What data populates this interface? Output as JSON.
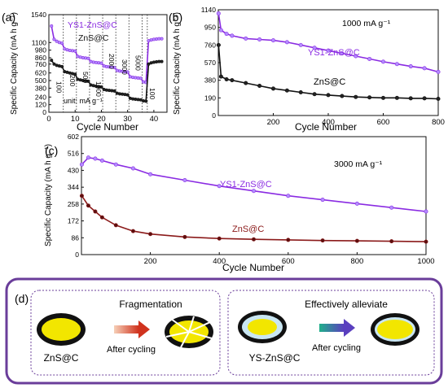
{
  "figure": {
    "panels": {
      "a": {
        "label": "(a)",
        "ylabel": "Specific Capacity (mA h g⁻¹)",
        "xlabel": "Cycle Number",
        "unit_note": "unit: mA g⁻¹",
        "series_labels": [
          "YS1-ZnS@C",
          "ZnS@C"
        ],
        "rate_labels": [
          "100",
          "200",
          "500",
          "1000",
          "2000",
          "3000",
          "5000",
          "100"
        ]
      },
      "b": {
        "label": "(b)",
        "ylabel": "Specific Capacity (mA h g⁻¹)",
        "xlabel": "Cycle Number",
        "note": "1000 mA g⁻¹",
        "series_labels": [
          "YS1-ZnS@C",
          "ZnS@C"
        ]
      },
      "c": {
        "label": "(c)",
        "ylabel": "Specific Capacity (mA h g⁻¹)",
        "xlabel": "Cycle Number",
        "note": "3000 mA g⁻¹",
        "series_labels": [
          "YS1-ZnS@C",
          "ZnS@C"
        ]
      },
      "d": {
        "label": "(d)",
        "left": {
          "title": "Fragmentation",
          "material": "ZnS@C",
          "arrow_label": "After cycling"
        },
        "right": {
          "title": "Effectively alleviate",
          "material": "YS-ZnS@C",
          "arrow_label": "After cycling"
        }
      }
    },
    "colors": {
      "ys": "#8a2be2",
      "zns": "#111111",
      "zns_c": "#8b1a1a",
      "frame": "#6a3d9a",
      "core": "#f2e600"
    }
  },
  "chart_data": [
    {
      "type": "line",
      "panel": "a",
      "xlabel": "Cycle Number",
      "ylabel": "Specific Capacity (mA h g⁻¹)",
      "xlim": [
        0,
        45
      ],
      "ylim": [
        0,
        1540
      ],
      "x_ticks": [
        0,
        10,
        20,
        30,
        40
      ],
      "y_ticks": [
        0,
        120,
        240,
        380,
        500,
        620,
        760,
        860,
        980,
        1100,
        1540
      ],
      "series": [
        {
          "name": "YS1-ZnS@C",
          "x": [
            1,
            2,
            3,
            4,
            5,
            6,
            7,
            8,
            9,
            10,
            11,
            12,
            13,
            14,
            15,
            16,
            17,
            18,
            19,
            20,
            21,
            22,
            23,
            24,
            25,
            26,
            27,
            28,
            29,
            30,
            31,
            32,
            33,
            34,
            35,
            36,
            37,
            38,
            39,
            40,
            41,
            42,
            43
          ],
          "y": [
            1360,
            1150,
            1120,
            1100,
            1090,
            1000,
            985,
            975,
            970,
            965,
            880,
            870,
            860,
            855,
            850,
            800,
            790,
            785,
            780,
            775,
            730,
            720,
            715,
            710,
            705,
            660,
            650,
            645,
            640,
            635,
            560,
            550,
            545,
            540,
            535,
            480,
            470,
            1130,
            1140,
            1150,
            1155,
            1160,
            1160
          ]
        },
        {
          "name": "ZnS@C",
          "x": [
            1,
            2,
            3,
            4,
            5,
            6,
            7,
            8,
            9,
            10,
            11,
            12,
            13,
            14,
            15,
            16,
            17,
            18,
            19,
            20,
            21,
            22,
            23,
            24,
            25,
            26,
            27,
            28,
            29,
            30,
            31,
            32,
            33,
            34,
            35,
            36,
            37,
            38,
            39,
            40,
            41,
            42,
            43
          ],
          "y": [
            820,
            760,
            740,
            730,
            720,
            640,
            630,
            620,
            610,
            600,
            520,
            510,
            500,
            495,
            490,
            430,
            420,
            410,
            405,
            400,
            360,
            350,
            345,
            340,
            335,
            300,
            290,
            285,
            280,
            275,
            220,
            210,
            205,
            200,
            195,
            180,
            175,
            760,
            780,
            790,
            795,
            800,
            800
          ]
        }
      ]
    },
    {
      "type": "line",
      "panel": "b",
      "xlabel": "Cycle Number",
      "ylabel": "Specific Capacity (mA h g⁻¹)",
      "xlim": [
        0,
        800
      ],
      "ylim": [
        0,
        1140
      ],
      "x_ticks": [
        200,
        400,
        600,
        800
      ],
      "y_ticks": [
        0,
        190,
        380,
        570,
        760,
        950,
        1140
      ],
      "series": [
        {
          "name": "YS1-ZnS@C",
          "x": [
            1,
            10,
            30,
            50,
            100,
            150,
            200,
            250,
            300,
            350,
            400,
            450,
            500,
            550,
            600,
            650,
            700,
            750,
            800
          ],
          "y": [
            1100,
            920,
            880,
            860,
            830,
            820,
            810,
            790,
            760,
            730,
            700,
            670,
            640,
            610,
            580,
            555,
            530,
            510,
            470
          ]
        },
        {
          "name": "ZnS@C",
          "x": [
            1,
            10,
            30,
            50,
            100,
            150,
            200,
            250,
            300,
            350,
            400,
            450,
            500,
            550,
            600,
            650,
            700,
            750,
            800
          ],
          "y": [
            760,
            420,
            390,
            380,
            350,
            320,
            290,
            270,
            250,
            230,
            220,
            210,
            200,
            195,
            190,
            190,
            185,
            185,
            180
          ]
        }
      ]
    },
    {
      "type": "line",
      "panel": "c",
      "xlabel": "Cycle Number",
      "ylabel": "Specific Capacity (mA h g⁻¹)",
      "xlim": [
        0,
        1000
      ],
      "ylim": [
        0,
        602
      ],
      "x_ticks": [
        200,
        400,
        600,
        800,
        1000
      ],
      "y_ticks": [
        0,
        86,
        172,
        258,
        344,
        430,
        516,
        602
      ],
      "series": [
        {
          "name": "YS1-ZnS@C",
          "x": [
            1,
            20,
            40,
            60,
            100,
            150,
            200,
            300,
            400,
            500,
            600,
            700,
            800,
            900,
            1000
          ],
          "y": [
            460,
            495,
            490,
            480,
            460,
            440,
            410,
            380,
            350,
            325,
            300,
            280,
            260,
            240,
            220
          ]
        },
        {
          "name": "ZnS@C",
          "x": [
            1,
            20,
            40,
            60,
            100,
            150,
            200,
            300,
            400,
            500,
            600,
            700,
            800,
            900,
            1000
          ],
          "y": [
            300,
            250,
            220,
            190,
            150,
            120,
            105,
            90,
            82,
            78,
            75,
            72,
            70,
            68,
            66
          ]
        }
      ]
    }
  ]
}
